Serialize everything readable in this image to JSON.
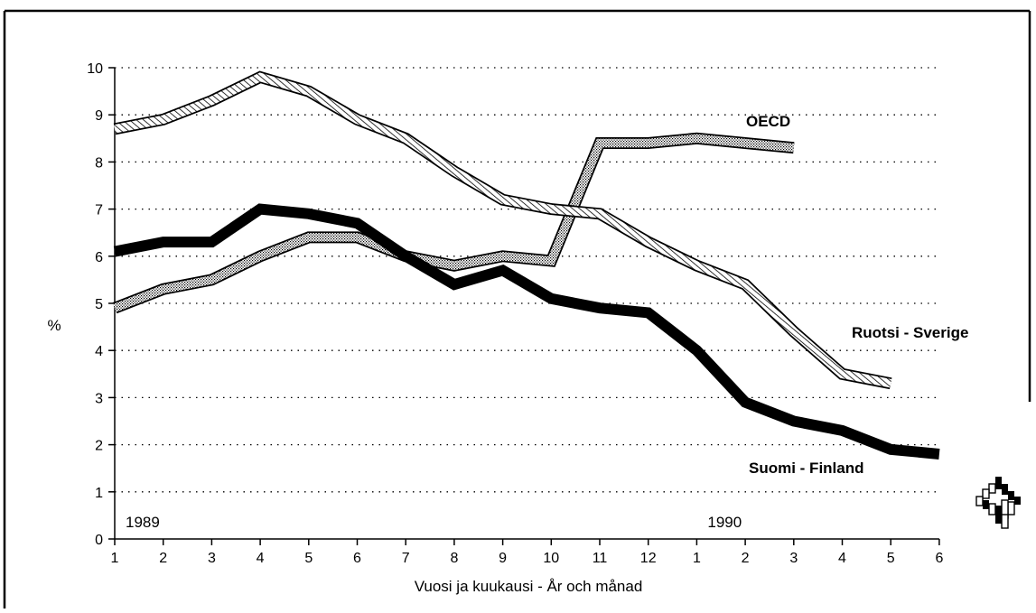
{
  "chart_data": {
    "type": "line",
    "title": "",
    "xlabel": "Vuosi ja kuukausi - År och månad",
    "ylabel": "%",
    "ylim": [
      0,
      10
    ],
    "yticks": [
      "0",
      "1",
      "2",
      "3",
      "4",
      "5",
      "6",
      "7",
      "8",
      "9",
      "10"
    ],
    "grid": true,
    "categories": [
      "1",
      "2",
      "3",
      "4",
      "5",
      "6",
      "7",
      "8",
      "9",
      "10",
      "11",
      "12",
      "1",
      "2",
      "3",
      "4",
      "5",
      "6"
    ],
    "year_labels": [
      {
        "text": "1989",
        "category_index": 0
      },
      {
        "text": "1990",
        "category_index": 12
      }
    ],
    "series": [
      {
        "name": "OECD",
        "style": "dotted",
        "values": [
          4.9,
          5.3,
          5.5,
          6.0,
          6.4,
          6.4,
          6.0,
          5.8,
          6.0,
          5.9,
          8.4,
          8.4,
          8.5,
          8.4,
          8.3,
          null,
          null,
          null
        ]
      },
      {
        "name": "Ruotsi - Sverige",
        "style": "hatched",
        "values": [
          8.7,
          8.9,
          9.3,
          9.8,
          9.5,
          8.9,
          8.5,
          7.8,
          7.2,
          7.0,
          6.9,
          6.3,
          5.8,
          5.4,
          4.4,
          3.5,
          3.3,
          null
        ]
      },
      {
        "name": "Suomi - Finland",
        "style": "solid-black",
        "values": [
          6.1,
          6.3,
          6.3,
          7.0,
          6.9,
          6.7,
          6.0,
          5.4,
          5.7,
          5.1,
          4.9,
          4.8,
          4.0,
          2.9,
          2.5,
          2.3,
          1.9,
          1.8
        ]
      }
    ]
  },
  "colors": {
    "line": "#000000",
    "background": "#ffffff"
  },
  "logo": {
    "icon": "statistics-finland-logo-icon"
  }
}
